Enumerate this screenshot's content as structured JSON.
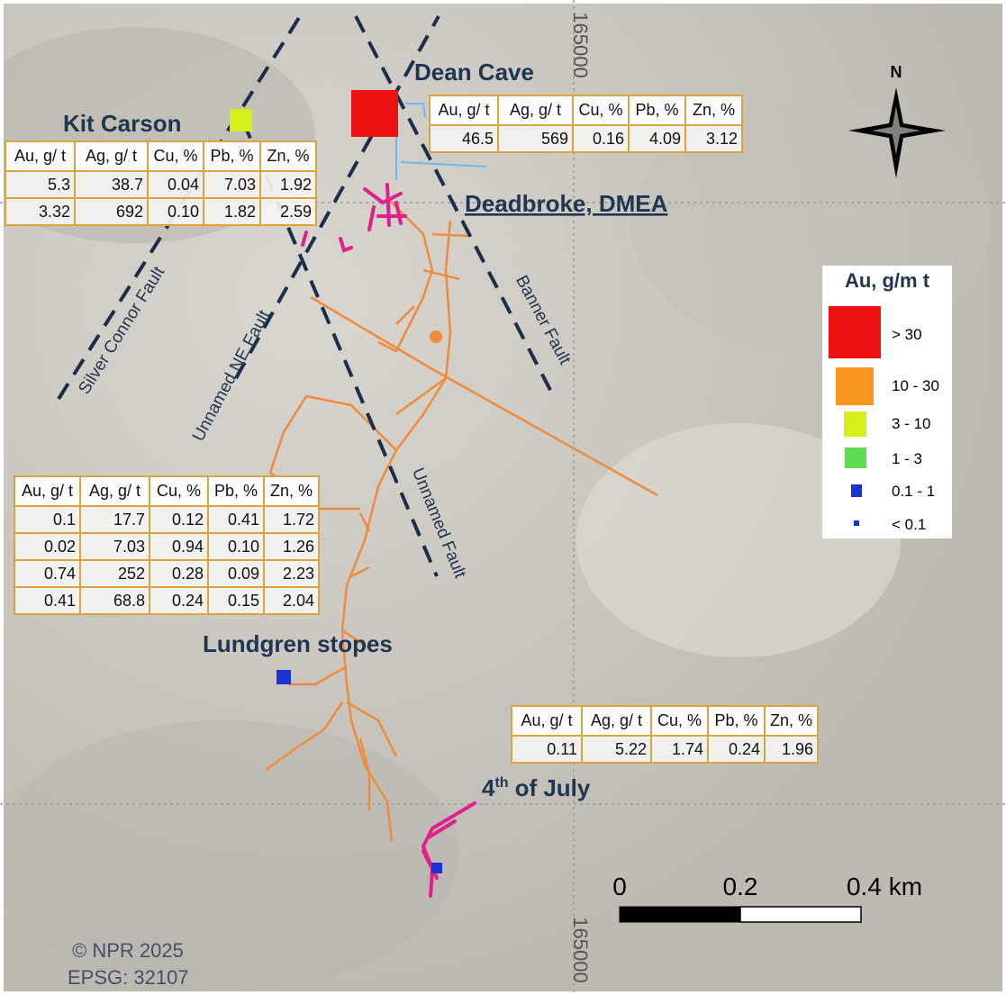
{
  "map": {
    "labels": {
      "dean_cave": "Dean Cave",
      "kit_carson": "Kit Carson",
      "deadbroke": "Deadbroke, DMEA",
      "lundgren": "Lundgren stopes",
      "fourth_of_july": {
        "number": "4",
        "suffix": "th",
        "text": "of July"
      }
    },
    "faults": [
      "Silver Connor Fault",
      "Unnamed NE Fault",
      "Banner Fault",
      "Unnamed Fault"
    ],
    "grid_labels": [
      "165000",
      "165000"
    ],
    "north": "N",
    "scale": [
      "0",
      "0.2",
      "0.4 km"
    ],
    "credits": [
      "© NPR 2025",
      "EPSG: 32107"
    ]
  },
  "tables": [
    {
      "header": [
        "Au, g/ t",
        "Ag, g/ t",
        "Cu, %",
        "Pb, %",
        "Zn, %"
      ],
      "rows": [
        [
          "46.5",
          "569",
          "0.16",
          "4.09",
          "3.12"
        ]
      ]
    },
    {
      "header": [
        "Au, g/ t",
        "Ag, g/ t",
        "Cu, %",
        "Pb, %",
        "Zn, %"
      ],
      "rows": [
        [
          "5.3",
          "38.7",
          "0.04",
          "7.03",
          "1.92"
        ],
        [
          "3.32",
          "692",
          "0.10",
          "1.82",
          "2.59"
        ]
      ]
    },
    {
      "header": [
        "Au, g/ t",
        "Ag, g/ t",
        "Cu, %",
        "Pb, %",
        "Zn, %"
      ],
      "rows": [
        [
          "0.1",
          "17.7",
          "0.12",
          "0.41",
          "1.72"
        ],
        [
          "0.02",
          "7.03",
          "0.94",
          "0.10",
          "1.26"
        ],
        [
          "0.74",
          "252",
          "0.28",
          "0.09",
          "2.23"
        ],
        [
          "0.41",
          "68.8",
          "0.24",
          "0.15",
          "2.04"
        ]
      ]
    },
    {
      "header": [
        "Au, g/ t",
        "Ag, g/ t",
        "Cu, %",
        "Pb, %",
        "Zn, %"
      ],
      "rows": [
        [
          "0.11",
          "5.22",
          "1.74",
          "0.24",
          "1.96"
        ]
      ]
    }
  ],
  "legend": {
    "title": "Au, g/m t",
    "items": [
      "> 30",
      "10 - 30",
      "3 - 10",
      "1 - 3",
      "0.1 - 1",
      "< 0.1"
    ]
  }
}
